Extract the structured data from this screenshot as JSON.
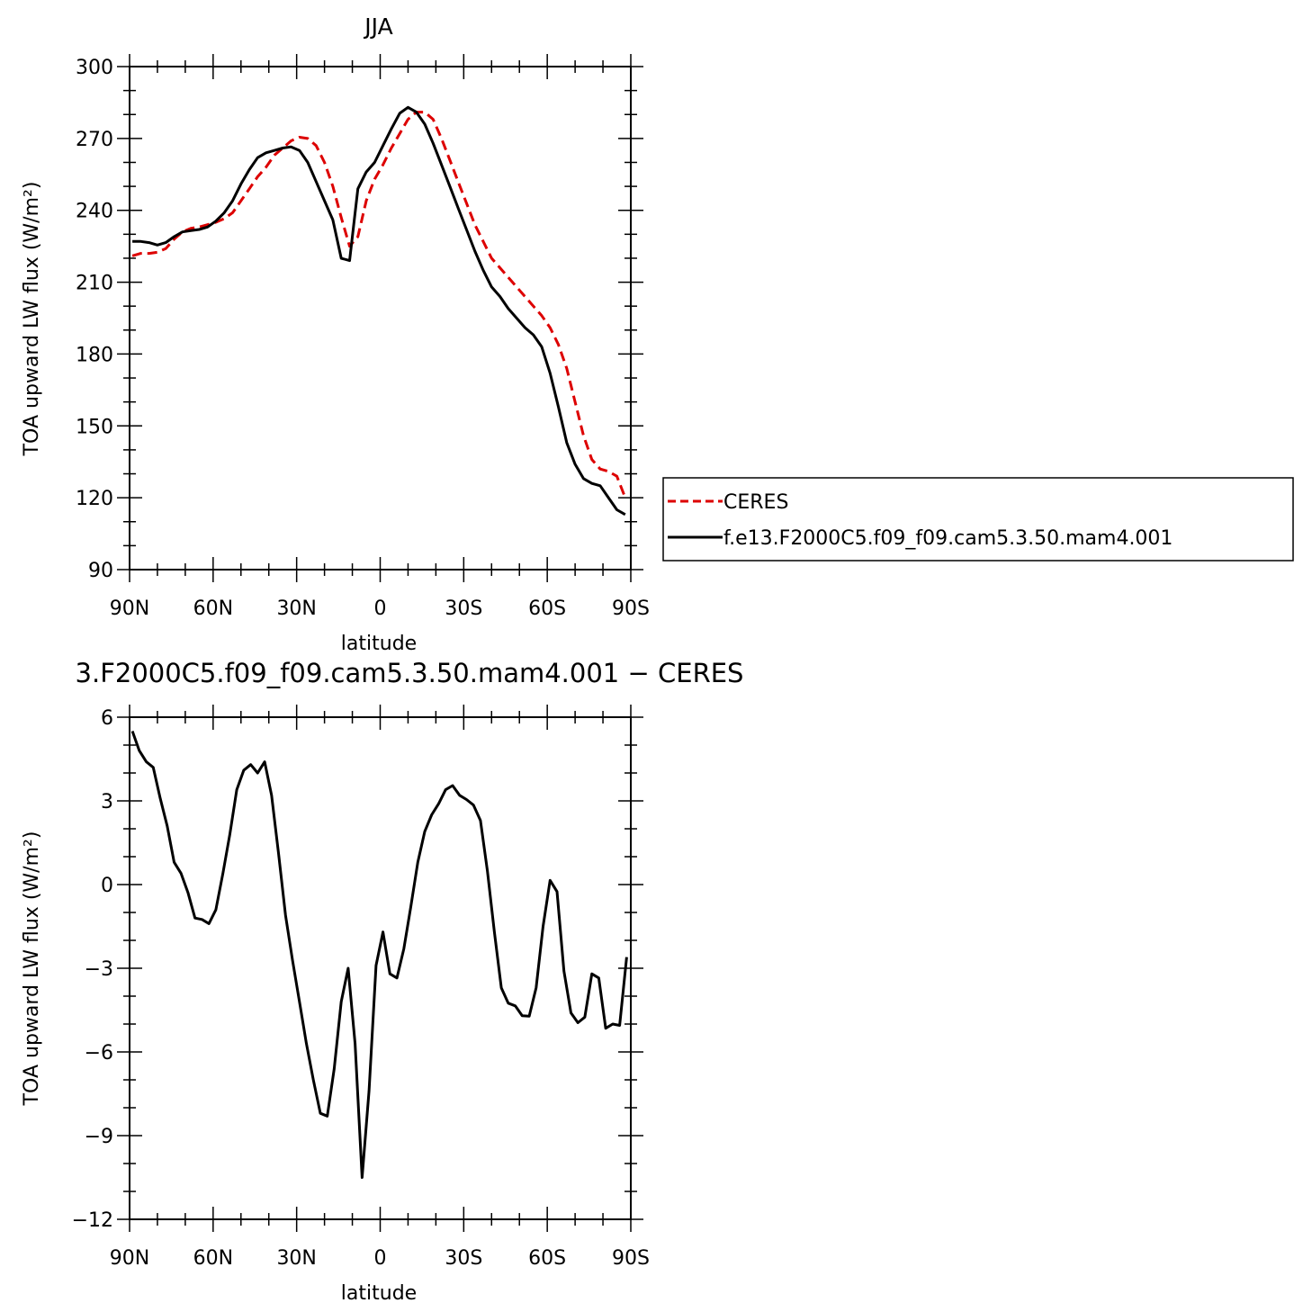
{
  "chart_data": [
    {
      "type": "line",
      "title": "JJA",
      "xlabel": "latitude",
      "ylabel": "TOA upward LW flux (W/m²)",
      "xlim": [
        90,
        -90
      ],
      "ylim": [
        90,
        300
      ],
      "xticks": [
        {
          "value": 90,
          "label": "90N"
        },
        {
          "value": 60,
          "label": "60N"
        },
        {
          "value": 30,
          "label": "30N"
        },
        {
          "value": 0,
          "label": "0"
        },
        {
          "value": -30,
          "label": "30S"
        },
        {
          "value": -60,
          "label": "60S"
        },
        {
          "value": -90,
          "label": "90S"
        }
      ],
      "yticks": [
        90,
        120,
        150,
        180,
        210,
        240,
        270,
        300
      ],
      "legend": "right",
      "series": [
        {
          "name": "CERES",
          "color": "#dd0000",
          "dash": "dashed",
          "x": [
            89,
            86,
            83,
            80,
            77,
            74,
            71,
            68,
            65,
            62,
            59,
            56,
            53,
            50,
            47,
            44,
            41,
            38,
            35,
            32,
            29,
            26,
            23,
            20,
            17,
            14,
            11,
            8,
            5,
            2,
            -1,
            -4,
            -7,
            -10,
            -13,
            -16,
            -19,
            -22,
            -25,
            -28,
            -31,
            -34,
            -37,
            -40,
            -43,
            -46,
            -49,
            -52,
            -55,
            -58,
            -61,
            -64,
            -67,
            -70,
            -73,
            -76,
            -79,
            -82,
            -85,
            -88
          ],
          "y": [
            221,
            222,
            222,
            222.5,
            224,
            228,
            231,
            232.5,
            233,
            234,
            235,
            236.5,
            239,
            244,
            249,
            254,
            258,
            263,
            266,
            269,
            270.5,
            270,
            267,
            260,
            250,
            237,
            225,
            229,
            244,
            253,
            259,
            266,
            272,
            278,
            281,
            281,
            278,
            270,
            261,
            252,
            243,
            234,
            227,
            220,
            216,
            212,
            208,
            204,
            200,
            196,
            191,
            184,
            174,
            160,
            146,
            136,
            132,
            131,
            129,
            120
          ],
          "name_key": "CERES"
        },
        {
          "name": "f.e13.F2000C5.f09_f09.cam5.3.50.mam4.001",
          "color": "#000000",
          "dash": "solid",
          "x": [
            89,
            86,
            83,
            80,
            77,
            74,
            71,
            68,
            65,
            62,
            59,
            56,
            53,
            50,
            47,
            44,
            41,
            38,
            35,
            32,
            29,
            26,
            23,
            20,
            17,
            14,
            11,
            8,
            5,
            2,
            -1,
            -4,
            -7,
            -10,
            -13,
            -16,
            -19,
            -22,
            -25,
            -28,
            -31,
            -34,
            -37,
            -40,
            -43,
            -46,
            -49,
            -52,
            -55,
            -58,
            -61,
            -64,
            -67,
            -70,
            -73,
            -76,
            -79,
            -82,
            -85,
            -88
          ],
          "y": [
            227,
            227,
            226.5,
            225.5,
            226.5,
            229,
            231,
            231.5,
            232,
            233,
            235.5,
            239,
            244,
            251,
            257,
            262,
            264,
            265,
            266,
            266.5,
            265,
            260,
            252,
            244,
            236,
            220,
            219,
            249,
            256,
            260,
            267,
            274,
            280.5,
            283,
            281,
            276,
            268,
            259,
            250,
            241,
            232,
            223,
            215,
            208,
            204,
            199,
            195,
            191,
            188,
            183,
            172,
            158,
            143,
            134,
            128,
            126,
            125,
            120,
            115,
            113
          ]
        }
      ]
    },
    {
      "type": "line",
      "title": "3.F2000C5.f09_f09.cam5.3.50.mam4.001 − CERES",
      "xlabel": "latitude",
      "ylabel": "TOA upward LW flux (W/m²)",
      "xlim": [
        90,
        -90
      ],
      "ylim": [
        -12,
        6
      ],
      "xticks": [
        {
          "value": 90,
          "label": "90N"
        },
        {
          "value": 60,
          "label": "60N"
        },
        {
          "value": 30,
          "label": "30N"
        },
        {
          "value": 0,
          "label": "0"
        },
        {
          "value": -30,
          "label": "30S"
        },
        {
          "value": -60,
          "label": "60S"
        },
        {
          "value": -90,
          "label": "90S"
        }
      ],
      "yticks": [
        -12,
        -9,
        -6,
        -3,
        0,
        3,
        6
      ],
      "series": [
        {
          "color": "#000000",
          "dash": "solid",
          "x": [
            89,
            86.5,
            84,
            81.5,
            79,
            76.5,
            74,
            71.5,
            69,
            66.5,
            64,
            61.5,
            59,
            56.5,
            54,
            51.5,
            49,
            46.5,
            44,
            41.5,
            39,
            36.5,
            34,
            31.5,
            29,
            26.5,
            24,
            21.5,
            19,
            16.5,
            14,
            11.5,
            9,
            6.5,
            4,
            1.5,
            -1,
            -3.5,
            -6,
            -8.5,
            -11,
            -13.5,
            -16,
            -18.5,
            -21,
            -23.5,
            -26,
            -28.5,
            -31,
            -33.5,
            -36,
            -38.5,
            -41,
            -43.5,
            -46,
            -48.5,
            -51,
            -53.5,
            -56,
            -58.5,
            -61,
            -63.5,
            -66,
            -68.5,
            -71,
            -73.5,
            -76,
            -78.5,
            -81,
            -83.5,
            -86,
            -88.5
          ],
          "y": [
            5.5,
            4.8,
            4.4,
            4.2,
            3.1,
            2.1,
            0.8,
            0.4,
            -0.3,
            -1.2,
            -1.25,
            -1.4,
            -0.9,
            0.4,
            1.8,
            3.4,
            4.1,
            4.3,
            4.0,
            4.4,
            3.2,
            1.1,
            -1.1,
            -2.7,
            -4.2,
            -5.7,
            -7.0,
            -8.2,
            -8.3,
            -6.6,
            -4.2,
            -3.0,
            -5.7,
            -10.5,
            -7.4,
            -2.9,
            -1.7,
            -3.2,
            -3.35,
            -2.3,
            -0.8,
            0.8,
            1.9,
            2.5,
            2.9,
            3.4,
            3.55,
            3.2,
            3.05,
            2.85,
            2.3,
            0.5,
            -1.7,
            -3.7,
            -4.25,
            -4.35,
            -4.7,
            -4.72,
            -3.7,
            -1.5,
            0.15,
            -0.25,
            -3.1,
            -4.6,
            -4.95,
            -4.75,
            -3.2,
            -3.35,
            -5.15,
            -5.0,
            -5.05,
            -2.6
          ]
        }
      ]
    }
  ]
}
